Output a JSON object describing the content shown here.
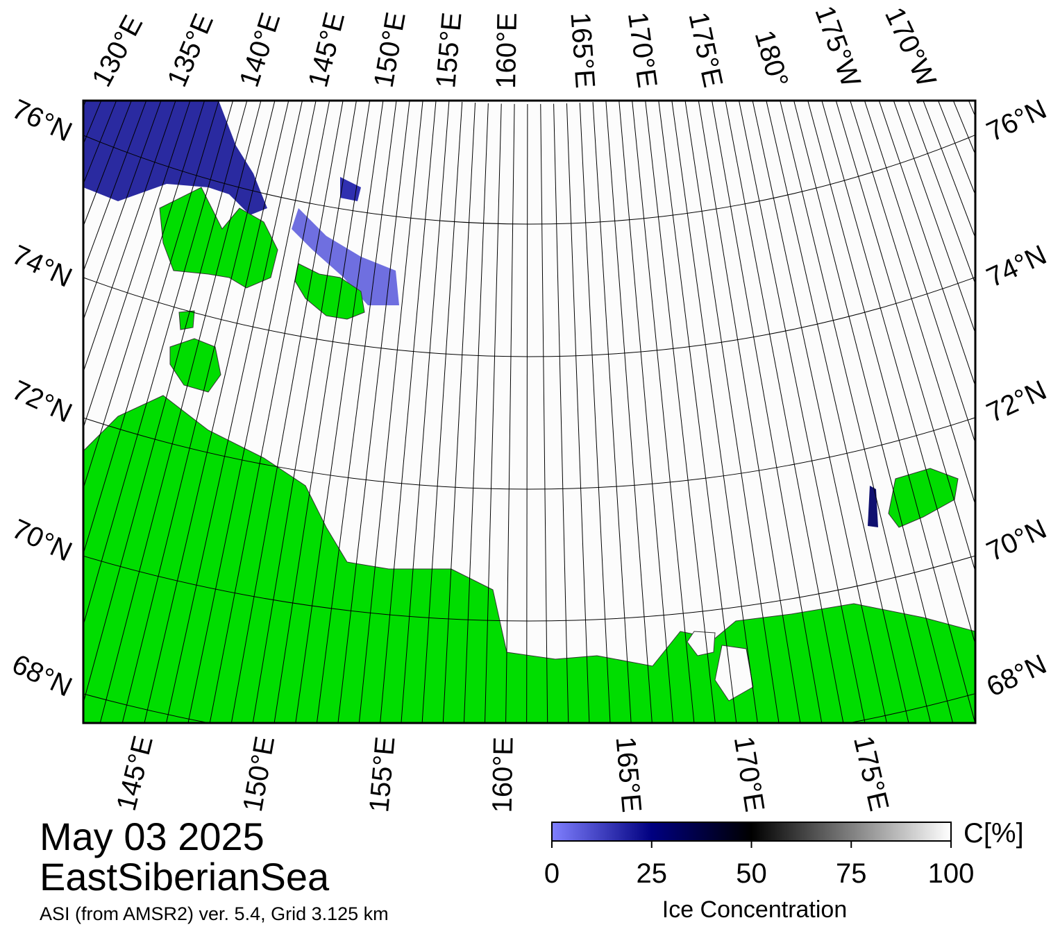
{
  "map": {
    "date": "May 03 2025",
    "region": "EastSiberianSea",
    "source": "ASI (from AMSR2) ver. 5.4,  Grid 3.125 km",
    "top_lon_labels": [
      "130°E",
      "135°E",
      "140°E",
      "145°E",
      "150°E",
      "155°E",
      "160°E",
      "165°E",
      "170°E",
      "175°E",
      "180°",
      "175°W",
      "170°W"
    ],
    "bottom_lon_labels": [
      "145°E",
      "150°E",
      "155°E",
      "160°E",
      "165°E",
      "170°E",
      "175°E"
    ],
    "left_lat_labels": [
      "76°N",
      "74°N",
      "72°N",
      "70°N",
      "68°N"
    ],
    "right_lat_labels": [
      "76°N",
      "74°N",
      "72°N",
      "70°N",
      "68°N"
    ]
  },
  "colorbar": {
    "unit": "C[%]",
    "label": "Ice Concentration",
    "range": [
      0,
      100
    ],
    "ticks": [
      0,
      25,
      50,
      75,
      100
    ]
  }
}
